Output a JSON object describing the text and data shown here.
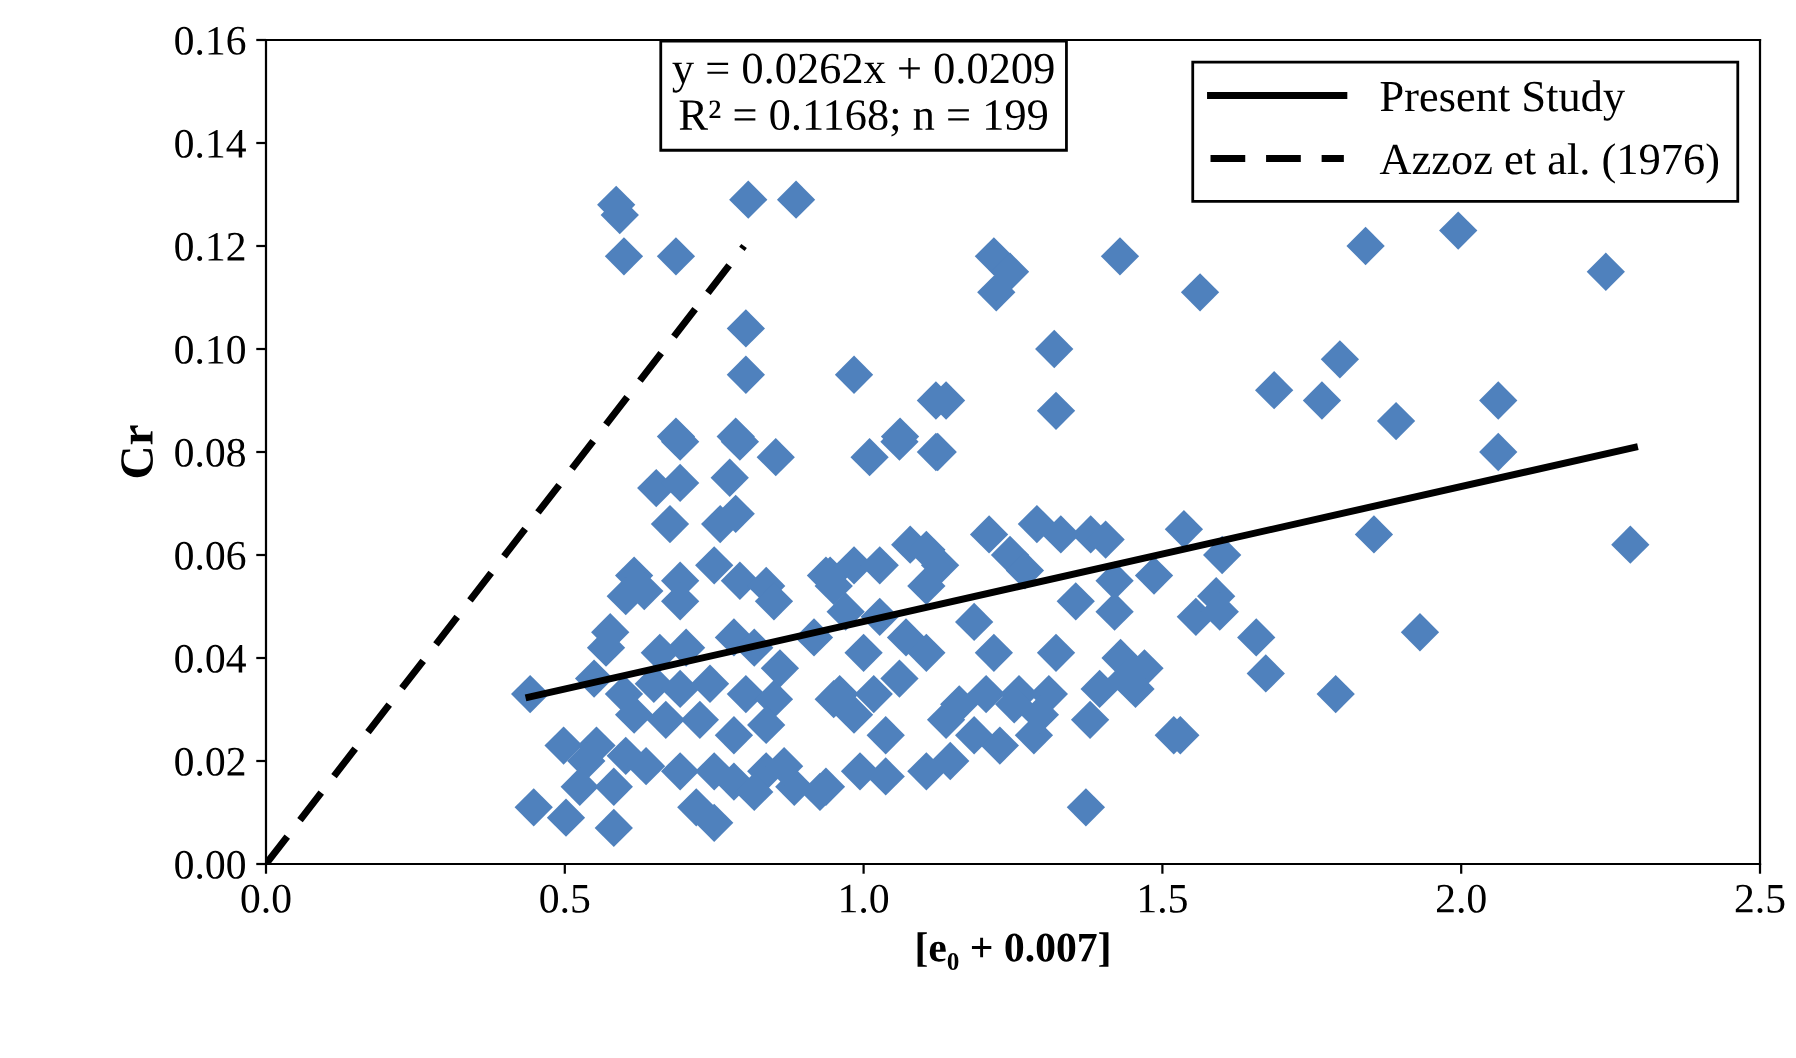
{
  "chart_data": {
    "type": "scatter",
    "xlabel": "[e₀ + 0.007]",
    "ylabel": "Cr",
    "xlim": [
      0,
      2.5
    ],
    "xticks": [
      {
        "value": 0,
        "label": "0.0"
      },
      {
        "value": 0.5,
        "label": "0.5"
      },
      {
        "value": 1,
        "label": "1.0"
      },
      {
        "value": 1.5,
        "label": "1.5"
      },
      {
        "value": 2,
        "label": "2.0"
      },
      {
        "value": 2.5,
        "label": "2.5"
      }
    ],
    "ylim": [
      0,
      0.16
    ],
    "yticks": [
      {
        "value": 0,
        "label": "0.00"
      },
      {
        "value": 0.02,
        "label": "0.02"
      },
      {
        "value": 0.04,
        "label": "0.04"
      },
      {
        "value": 0.06,
        "label": "0.06"
      },
      {
        "value": 0.08,
        "label": "0.08"
      },
      {
        "value": 0.1,
        "label": "0.10"
      },
      {
        "value": 0.12,
        "label": "0.12"
      },
      {
        "value": 0.14,
        "label": "0.14"
      },
      {
        "value": 0.16,
        "label": "0.16"
      }
    ],
    "grid": false,
    "legend": "top right",
    "annotations": [
      "y = 0.0262x + 0.0209\nR² = 0.1168; n = 199"
    ],
    "series": [
      {
        "color": "#4f81bd",
        "marker": "diamond",
        "x": [
          0.586,
          0.592,
          0.599,
          0.686,
          0.807,
          0.887,
          0.803,
          0.803,
          0.984,
          1.218,
          1.245,
          1.222,
          1.319,
          1.429,
          1.563,
          1.322,
          1.121,
          1.138,
          1.061,
          1.121,
          0.686,
          0.786,
          0.853,
          1.01,
          1.84,
          1.995,
          2.242,
          1.797,
          1.687,
          1.767,
          1.891,
          2.062,
          2.062,
          1.854,
          2.283,
          1.536,
          1.6,
          1.59,
          1.556,
          1.596,
          1.657,
          1.673,
          1.79,
          1.931,
          1.53,
          1.06,
          1.124,
          1.21,
          1.29,
          1.33,
          1.38,
          1.405,
          1.078,
          1.105,
          1.128,
          1.245,
          1.27,
          0.944,
          0.984,
          1.027,
          1.105,
          1.42,
          1.486,
          0.97,
          1.027,
          1.185,
          1.355,
          1.42,
          1.0,
          1.071,
          1.105,
          1.218,
          1.322,
          1.43,
          1.47,
          0.96,
          1.017,
          1.06,
          1.16,
          1.205,
          1.26,
          1.31,
          1.395,
          1.455,
          0.984,
          1.037,
          1.138,
          1.185,
          1.228,
          1.285,
          1.379,
          1.519,
          0.937,
          0.994,
          1.037,
          1.105,
          1.145,
          1.372,
          1.252,
          1.295,
          1.44,
          0.442,
          0.693,
          0.793,
          0.653,
          0.693,
          0.776,
          0.676,
          0.76,
          0.786,
          0.616,
          0.602,
          0.633,
          0.693,
          0.693,
          0.75,
          0.793,
          0.837,
          0.85,
          0.937,
          0.917,
          0.576,
          0.569,
          0.659,
          0.703,
          0.783,
          0.817,
          0.86,
          0.549,
          0.599,
          0.649,
          0.693,
          0.743,
          0.803,
          0.85,
          0.616,
          0.669,
          0.726,
          0.783,
          0.837,
          0.498,
          0.553,
          0.536,
          0.602,
          0.636,
          0.693,
          0.75,
          0.783,
          0.837,
          0.884,
          0.927,
          0.525,
          0.582,
          0.448,
          0.502,
          0.582,
          0.72,
          0.75,
          0.817,
          0.867,
          0.95,
          0.95
        ],
        "values": [
          0.128,
          0.126,
          0.118,
          0.118,
          0.129,
          0.129,
          0.104,
          0.095,
          0.095,
          0.118,
          0.115,
          0.111,
          0.1,
          0.118,
          0.111,
          0.088,
          0.09,
          0.09,
          0.083,
          0.08,
          0.083,
          0.083,
          0.079,
          0.079,
          0.12,
          0.123,
          0.115,
          0.098,
          0.092,
          0.09,
          0.086,
          0.09,
          0.08,
          0.064,
          0.062,
          0.065,
          0.06,
          0.052,
          0.048,
          0.049,
          0.044,
          0.037,
          0.033,
          0.045,
          0.025,
          0.082,
          0.08,
          0.064,
          0.066,
          0.064,
          0.064,
          0.063,
          0.062,
          0.061,
          0.058,
          0.06,
          0.057,
          0.056,
          0.058,
          0.058,
          0.054,
          0.055,
          0.056,
          0.049,
          0.048,
          0.047,
          0.051,
          0.049,
          0.041,
          0.044,
          0.041,
          0.041,
          0.041,
          0.04,
          0.038,
          0.033,
          0.033,
          0.036,
          0.031,
          0.033,
          0.033,
          0.033,
          0.034,
          0.034,
          0.029,
          0.025,
          0.028,
          0.025,
          0.023,
          0.025,
          0.028,
          0.025,
          0.015,
          0.018,
          0.017,
          0.018,
          0.02,
          0.011,
          0.031,
          0.029,
          0.036,
          0.033,
          0.082,
          0.082,
          0.073,
          0.074,
          0.075,
          0.066,
          0.066,
          0.068,
          0.056,
          0.052,
          0.053,
          0.055,
          0.051,
          0.058,
          0.055,
          0.054,
          0.051,
          0.056,
          0.044,
          0.045,
          0.042,
          0.041,
          0.042,
          0.044,
          0.042,
          0.038,
          0.036,
          0.033,
          0.035,
          0.034,
          0.035,
          0.033,
          0.032,
          0.029,
          0.028,
          0.028,
          0.025,
          0.027,
          0.023,
          0.023,
          0.02,
          0.021,
          0.019,
          0.018,
          0.018,
          0.016,
          0.018,
          0.015,
          0.014,
          0.015,
          0.015,
          0.011,
          0.009,
          0.007,
          0.011,
          0.008,
          0.014,
          0.019,
          0.032,
          0.054
        ]
      },
      {
        "type": "line",
        "name": "Present Study",
        "color": "#000000",
        "line_style": "solid",
        "x": [
          0.44,
          2.29
        ],
        "values": [
          0.0324,
          0.0809
        ]
      },
      {
        "type": "line",
        "name": "Azzoz et al. (1976)",
        "color": "#000000",
        "line_style": "dashed",
        "x": [
          0,
          0.8
        ],
        "values": [
          0,
          0.12
        ]
      }
    ]
  }
}
